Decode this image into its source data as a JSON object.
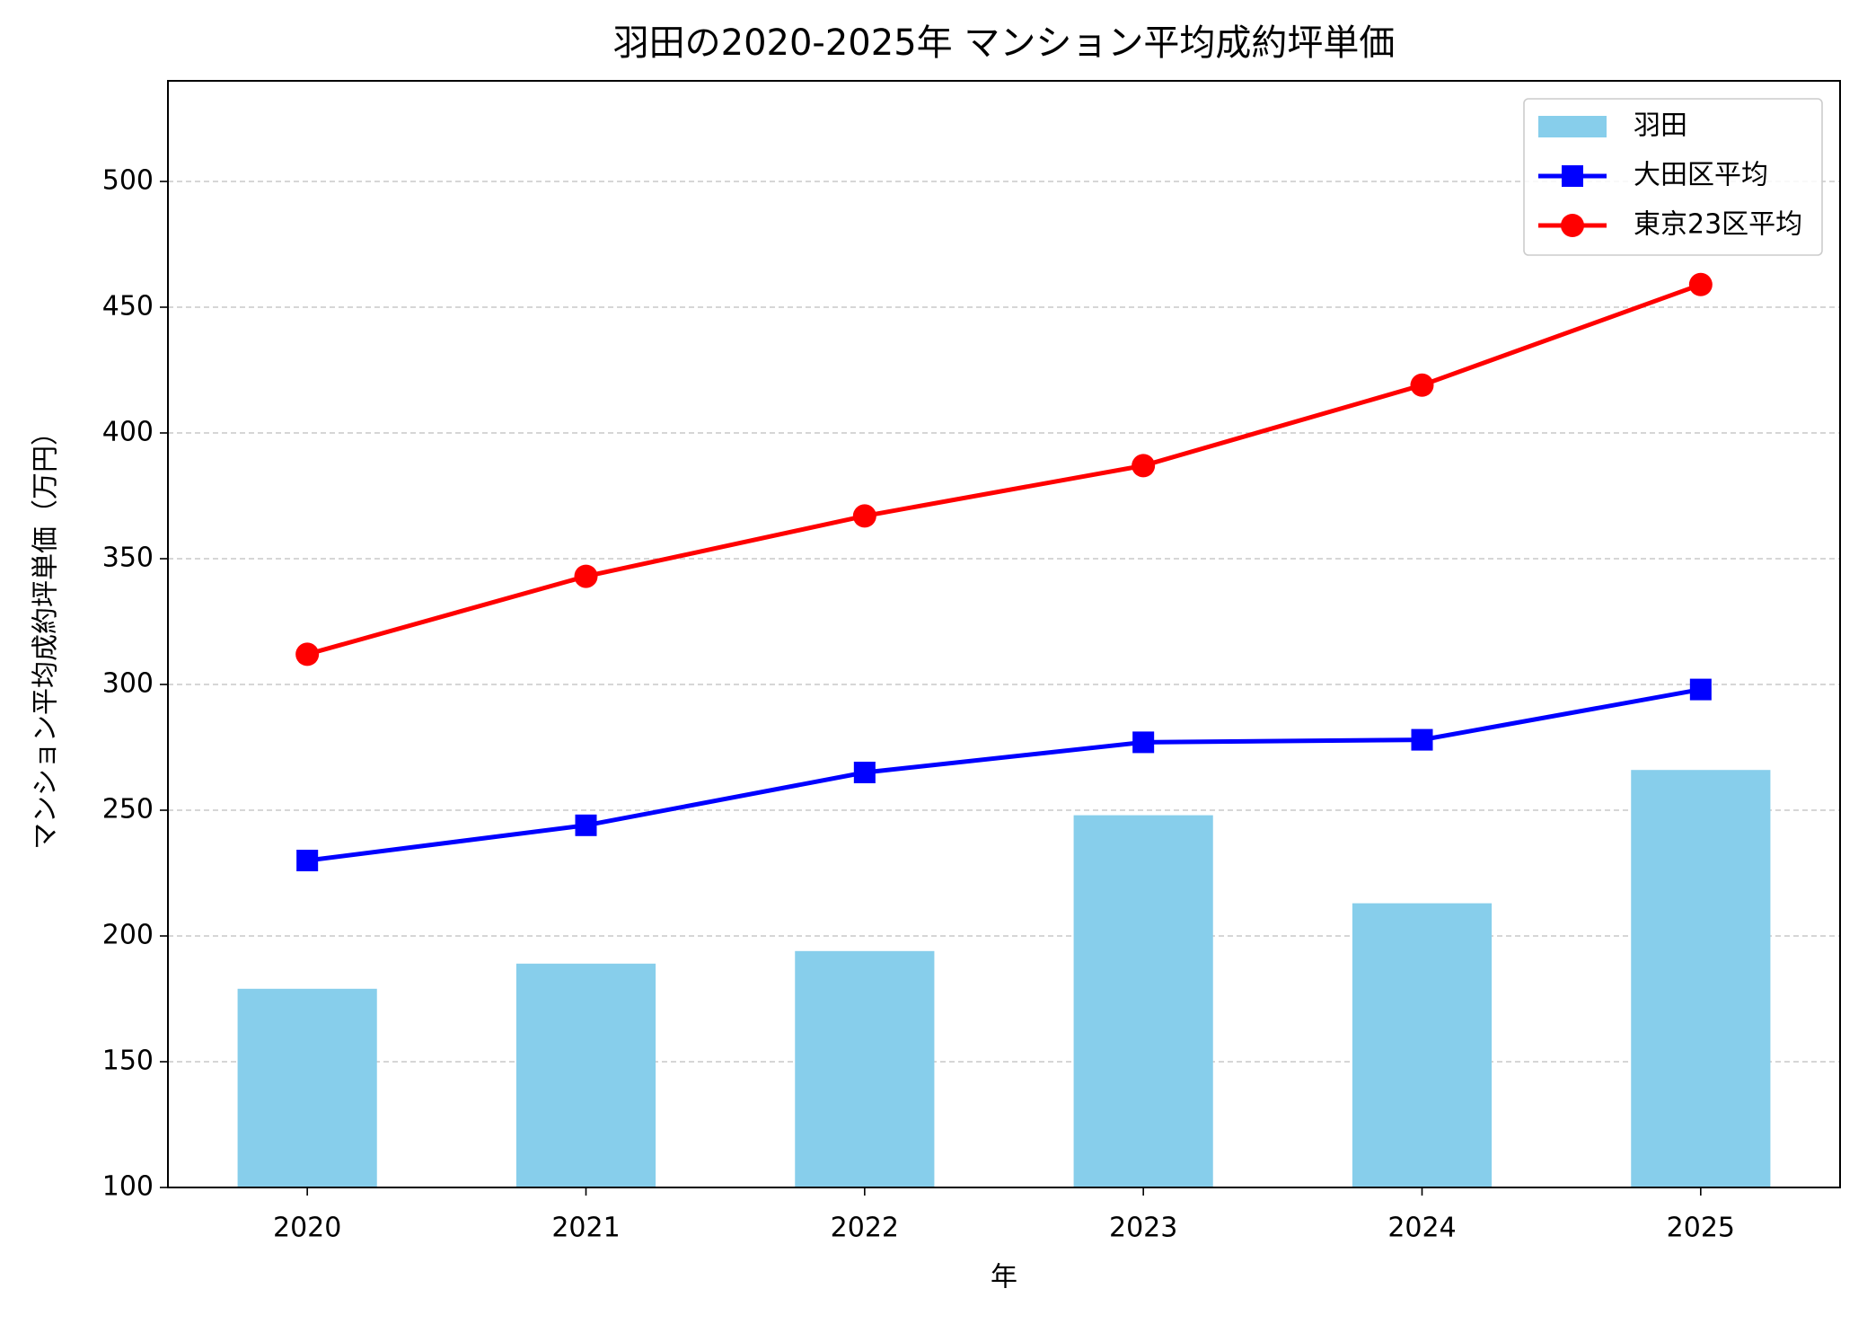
{
  "chart_data": {
    "type": "bar",
    "title": "羽田の2020-2025年 マンション平均成約坪単価",
    "x_label": "年",
    "y_label": "マンション平均成約坪単価（万円）",
    "categories": [
      "2020",
      "2021",
      "2022",
      "2023",
      "2024",
      "2025"
    ],
    "series": [
      {
        "name": "羽田",
        "type": "bar",
        "color": "#87ceeb",
        "values": [
          179,
          189,
          194,
          248,
          213,
          266
        ]
      },
      {
        "name": "大田区平均",
        "type": "line",
        "marker": "square",
        "color": "#0000ff",
        "values": [
          230,
          244,
          265,
          277,
          278,
          298
        ]
      },
      {
        "name": "東京23区平均",
        "type": "line",
        "marker": "circle",
        "color": "#ff0000",
        "values": [
          312,
          343,
          367,
          387,
          419,
          459
        ]
      }
    ],
    "ylim": [
      100,
      540
    ],
    "yticks": [
      100,
      150,
      200,
      250,
      300,
      350,
      400,
      450,
      500
    ],
    "grid": true,
    "legend": "upper right"
  }
}
